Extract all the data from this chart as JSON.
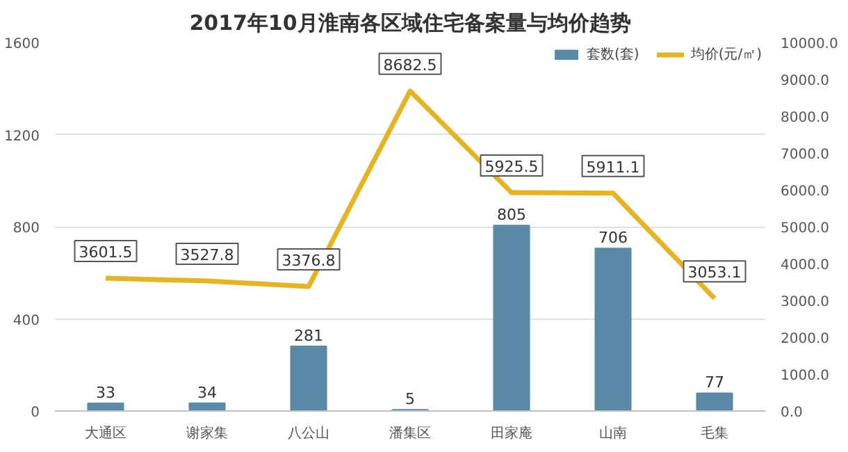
{
  "chart_data": {
    "type": "bar",
    "title": "2017年10月淮南各区域住宅备案量与均价趋势",
    "categories": [
      "大通区",
      "谢家集",
      "八公山",
      "潘集区",
      "田家庵",
      "山南",
      "毛集"
    ],
    "series": [
      {
        "name": "套数(套)",
        "color": "#5b8aa8",
        "values": [
          33,
          34,
          281,
          5,
          805,
          706,
          77
        ]
      },
      {
        "name": "均价(元/㎡)",
        "type": "line",
        "axis": "y2",
        "color": "#e6b422",
        "values": [
          3601.5,
          3527.8,
          3376.8,
          8682.5,
          5925.5,
          5911.1,
          3053.1
        ]
      }
    ],
    "ylim": [
      0,
      1600
    ],
    "yticks": [
      0,
      400,
      800,
      1200,
      1600
    ],
    "y2lim": [
      0,
      10000
    ],
    "y2ticks": [
      {
        "value": 0,
        "label": "0.0"
      },
      {
        "value": 1000,
        "label": "1000.0"
      },
      {
        "value": 2000,
        "label": "2000.0"
      },
      {
        "value": 3000,
        "label": "3000.0"
      },
      {
        "value": 4000,
        "label": "4000.0"
      },
      {
        "value": 5000,
        "label": "5000.0"
      },
      {
        "value": 6000,
        "label": "6000.0"
      },
      {
        "value": 7000,
        "label": "7000.0"
      },
      {
        "value": 8000,
        "label": "8000.0"
      },
      {
        "value": 9000,
        "label": "9000.0"
      },
      {
        "value": 10000,
        "label": "10000.0"
      }
    ],
    "grid": "y",
    "legend": "top right",
    "data_labels": true,
    "line_style": "solid",
    "marker": "none"
  }
}
